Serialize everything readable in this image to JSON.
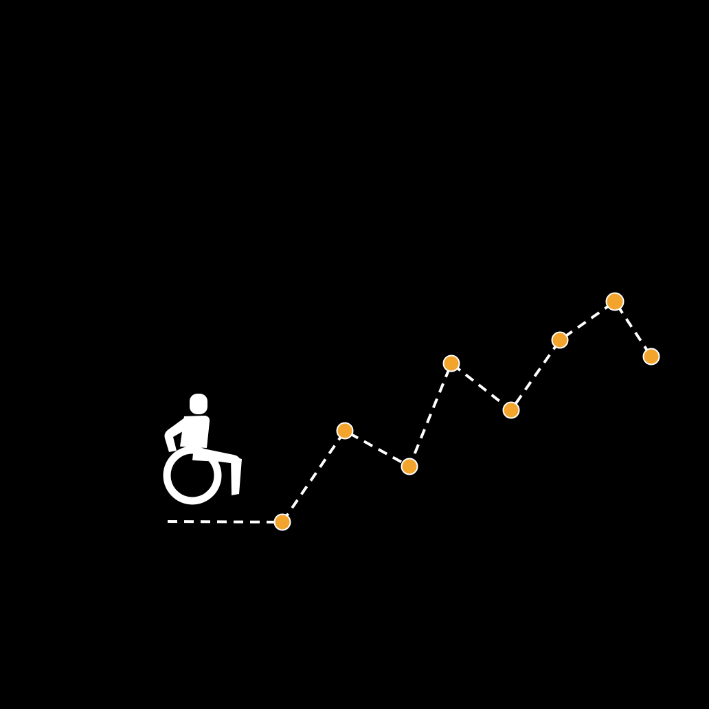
{
  "colors": {
    "background": "#000000",
    "path_line": "#ffffff",
    "marker_fill": "#f2a42c",
    "marker_stroke": "#ffffff",
    "icon": "#ffffff"
  },
  "icons": {
    "person": "wheelchair-user-icon"
  },
  "markers": {
    "count": 8
  }
}
